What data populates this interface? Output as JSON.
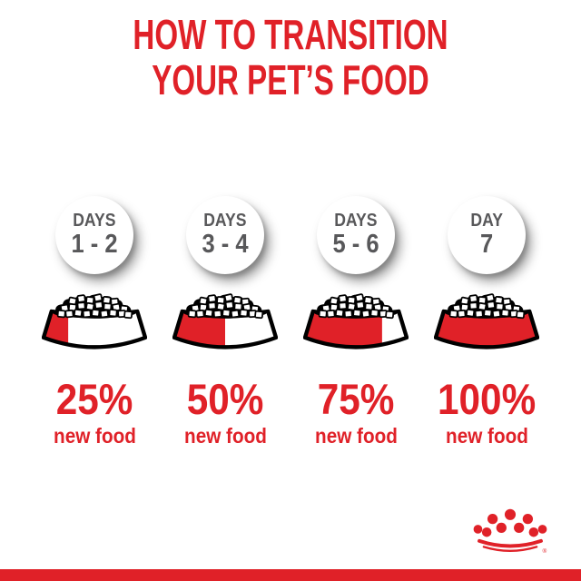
{
  "title": {
    "line1": "HOW TO TRANSITION",
    "line2": "YOUR PET’S FOOD"
  },
  "colors": {
    "brand_red": "#E02128",
    "text_gray": "#58585A",
    "kibble_black": "#000000"
  },
  "icons": {
    "bowl": "kibble-bowl-icon",
    "logo": "royal-canin-crown-icon"
  },
  "columns": [
    {
      "day_label": "DAYS",
      "day_range": "1 - 2",
      "percent": 25,
      "percent_label": "25%",
      "sub_label": "new food"
    },
    {
      "day_label": "DAYS",
      "day_range": "3 - 4",
      "percent": 50,
      "percent_label": "50%",
      "sub_label": "new food"
    },
    {
      "day_label": "DAYS",
      "day_range": "5 - 6",
      "percent": 75,
      "percent_label": "75%",
      "sub_label": "new food"
    },
    {
      "day_label": "DAY",
      "day_range": "7",
      "percent": 100,
      "percent_label": "100%",
      "sub_label": "new food"
    }
  ],
  "footer": {
    "registered_mark": "®"
  }
}
